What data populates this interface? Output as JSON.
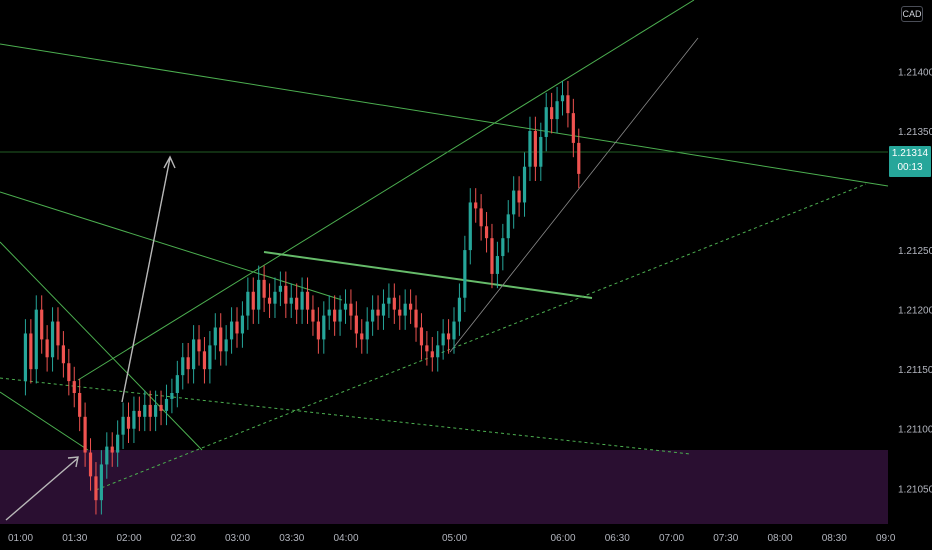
{
  "chart_data": {
    "type": "candlestick",
    "instrument_currency": "CAD",
    "last_price": "1.21314",
    "countdown": "00:13",
    "y_ticks": [
      "1.21400",
      "1.21350",
      "1.21250",
      "1.21200",
      "1.21150",
      "1.21100",
      "1.21050"
    ],
    "y_tick_values": [
      1.214,
      1.2135,
      1.2125,
      1.212,
      1.2115,
      1.211,
      1.2105
    ],
    "x_ticks": [
      "01:00",
      "01:30",
      "02:00",
      "02:30",
      "03:00",
      "03:30",
      "04:00",
      "05:00",
      "06:00",
      "06:30",
      "07:00",
      "07:30",
      "08:00",
      "08:30",
      "09:0"
    ],
    "x_tick_minutes": [
      60,
      90,
      120,
      150,
      180,
      210,
      240,
      300,
      360,
      390,
      420,
      450,
      480,
      510,
      540
    ],
    "ylim": [
      1.2102,
      1.2146
    ],
    "xlim_minutes": [
      60,
      540
    ],
    "colors": {
      "up": "#26a69a",
      "down": "#ef5350",
      "trendline": "#4caf50",
      "zone": "#2a0f31",
      "arrow": "#b8b8b8",
      "tag": "#26a69a"
    },
    "close_path": [
      [
        60,
        1.2114
      ],
      [
        63,
        1.2118
      ],
      [
        66,
        1.2115
      ],
      [
        69,
        1.212
      ],
      [
        72,
        1.21175
      ],
      [
        75,
        1.2116
      ],
      [
        78,
        1.2119
      ],
      [
        81,
        1.2117
      ],
      [
        84,
        1.21155
      ],
      [
        87,
        1.2114
      ],
      [
        90,
        1.2113
      ],
      [
        93,
        1.2111
      ],
      [
        96,
        1.2108
      ],
      [
        99,
        1.2106
      ],
      [
        102,
        1.2104
      ],
      [
        105,
        1.2107
      ],
      [
        108,
        1.21085
      ],
      [
        111,
        1.2108
      ],
      [
        114,
        1.21095
      ],
      [
        117,
        1.2111
      ],
      [
        120,
        1.211
      ],
      [
        123,
        1.21115
      ],
      [
        126,
        1.2111
      ],
      [
        129,
        1.2112
      ],
      [
        132,
        1.2111
      ],
      [
        135,
        1.2112
      ],
      [
        138,
        1.21115
      ],
      [
        141,
        1.21125
      ],
      [
        144,
        1.2113
      ],
      [
        147,
        1.21145
      ],
      [
        150,
        1.2116
      ],
      [
        153,
        1.2115
      ],
      [
        156,
        1.21175
      ],
      [
        159,
        1.21165
      ],
      [
        162,
        1.2115
      ],
      [
        165,
        1.2117
      ],
      [
        168,
        1.21185
      ],
      [
        171,
        1.21165
      ],
      [
        174,
        1.21175
      ],
      [
        177,
        1.2119
      ],
      [
        180,
        1.2118
      ],
      [
        183,
        1.21195
      ],
      [
        186,
        1.21215
      ],
      [
        189,
        1.212
      ],
      [
        192,
        1.21225
      ],
      [
        195,
        1.2121
      ],
      [
        198,
        1.21205
      ],
      [
        201,
        1.21215
      ],
      [
        204,
        1.2122
      ],
      [
        207,
        1.21205
      ],
      [
        210,
        1.2121
      ],
      [
        213,
        1.212
      ],
      [
        216,
        1.21215
      ],
      [
        219,
        1.212
      ],
      [
        222,
        1.2119
      ],
      [
        225,
        1.21175
      ],
      [
        228,
        1.21195
      ],
      [
        231,
        1.212
      ],
      [
        234,
        1.2119
      ],
      [
        237,
        1.212
      ],
      [
        240,
        1.21205
      ],
      [
        243,
        1.21195
      ],
      [
        246,
        1.2118
      ],
      [
        249,
        1.21175
      ],
      [
        252,
        1.2119
      ],
      [
        255,
        1.212
      ],
      [
        258,
        1.21195
      ],
      [
        261,
        1.21205
      ],
      [
        264,
        1.2121
      ],
      [
        267,
        1.212
      ],
      [
        270,
        1.21195
      ],
      [
        273,
        1.21205
      ],
      [
        276,
        1.212
      ],
      [
        279,
        1.21185
      ],
      [
        282,
        1.2117
      ],
      [
        285,
        1.21165
      ],
      [
        288,
        1.2116
      ],
      [
        291,
        1.2117
      ],
      [
        294,
        1.2118
      ],
      [
        297,
        1.21175
      ],
      [
        300,
        1.2119
      ],
      [
        303,
        1.2121
      ],
      [
        306,
        1.2125
      ],
      [
        309,
        1.2129
      ],
      [
        312,
        1.21285
      ],
      [
        315,
        1.2127
      ],
      [
        318,
        1.2126
      ],
      [
        321,
        1.2123
      ],
      [
        324,
        1.21245
      ],
      [
        327,
        1.2126
      ],
      [
        330,
        1.2128
      ],
      [
        333,
        1.213
      ],
      [
        336,
        1.2129
      ],
      [
        339,
        1.2132
      ],
      [
        342,
        1.2135
      ],
      [
        345,
        1.2132
      ],
      [
        348,
        1.21345
      ],
      [
        351,
        1.2137
      ],
      [
        354,
        1.2136
      ],
      [
        357,
        1.21375
      ],
      [
        360,
        1.2138
      ],
      [
        363,
        1.21365
      ],
      [
        366,
        1.2134
      ],
      [
        369,
        1.21314
      ]
    ]
  }
}
